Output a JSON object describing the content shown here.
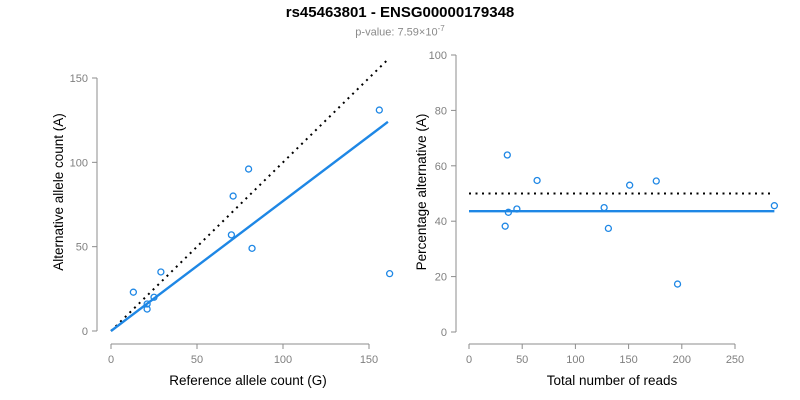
{
  "header": {
    "title": "rs45463801 - ENSG00000179348",
    "subtitle_base": "p-value: 7.59×10",
    "subtitle_exponent": "-7"
  },
  "colors": {
    "accent_blue": "#1E87E5",
    "identity_black": "#000000",
    "axis_line": "#8C8C8C",
    "tick_label": "#7F7F7F",
    "axis_title": "#000000",
    "subtitle_gray": "#8A8A8A",
    "background": "#FFFFFF"
  },
  "chart_data": [
    {
      "type": "scatter",
      "title": "",
      "xlabel": "Reference allele count (G)",
      "ylabel": "Alternative allele count (A)",
      "xlim": [
        0,
        163
      ],
      "ylim": [
        0,
        163
      ],
      "xticks": [
        0,
        50,
        100,
        150
      ],
      "yticks": [
        0,
        50,
        100,
        150
      ],
      "grid": false,
      "legend": null,
      "points": [
        [
          13,
          23
        ],
        [
          21,
          16
        ],
        [
          21,
          13
        ],
        [
          25,
          20
        ],
        [
          29,
          35
        ],
        [
          70,
          57
        ],
        [
          71,
          80
        ],
        [
          80,
          96
        ],
        [
          82,
          49
        ],
        [
          156,
          131
        ],
        [
          162,
          34
        ]
      ],
      "lines": [
        {
          "name": "identity-line",
          "style": "dotted",
          "color": "#000000",
          "x": [
            0,
            161
          ],
          "y": [
            0,
            161
          ]
        },
        {
          "name": "regression-line",
          "style": "solid",
          "color": "#1E87E5",
          "x": [
            0,
            161
          ],
          "y": [
            0,
            124
          ]
        }
      ]
    },
    {
      "type": "scatter",
      "title": "",
      "xlabel": "Total number of reads",
      "ylabel": "Percentage alternative (A)",
      "xlim": [
        0,
        290
      ],
      "ylim": [
        0,
        100
      ],
      "xticks": [
        0,
        50,
        100,
        150,
        200,
        250
      ],
      "yticks": [
        0,
        20,
        40,
        60,
        80,
        100
      ],
      "grid": false,
      "legend": null,
      "points": [
        [
          36,
          63.9
        ],
        [
          37,
          43.2
        ],
        [
          34,
          38.2
        ],
        [
          45,
          44.4
        ],
        [
          64,
          54.7
        ],
        [
          127,
          44.9
        ],
        [
          151,
          53.0
        ],
        [
          176,
          54.5
        ],
        [
          131,
          37.4
        ],
        [
          287,
          45.6
        ],
        [
          196,
          17.3
        ]
      ],
      "lines": [
        {
          "name": "expected-50pct-line",
          "style": "dotted",
          "color": "#000000",
          "x": [
            0,
            287
          ],
          "y": [
            50,
            50
          ]
        },
        {
          "name": "observed-ratio-line",
          "style": "solid",
          "color": "#1E87E5",
          "x": [
            0,
            287
          ],
          "y": [
            43.6,
            43.6
          ]
        }
      ]
    }
  ]
}
